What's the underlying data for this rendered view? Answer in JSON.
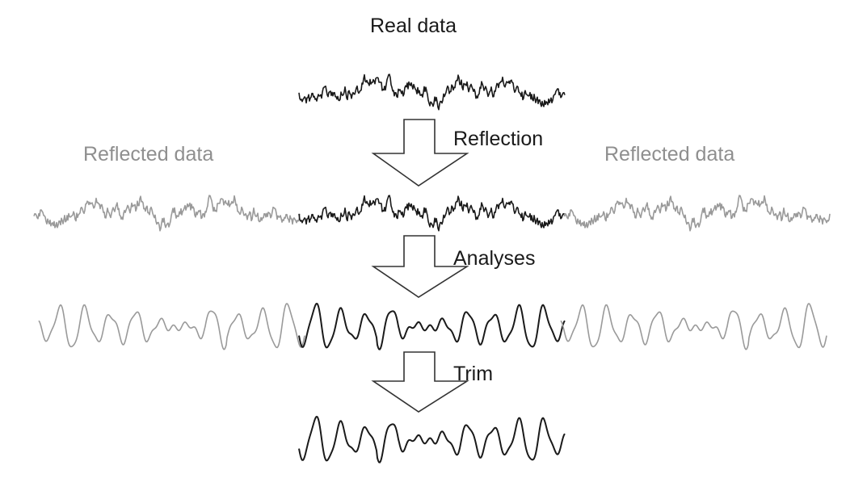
{
  "labels": {
    "real_data": "Real data",
    "reflection": "Reflection",
    "reflected_left": "Reflected data",
    "reflected_right": "Reflected data",
    "analyses": "Analyses",
    "trim": "Trim"
  },
  "colors": {
    "real": "#1a1a1a",
    "reflected": "#9a9a9a",
    "arrow_stroke": "#333333",
    "arrow_fill": "#ffffff"
  },
  "stages": [
    "raw-signal",
    "reflected-signal",
    "analysed-signal",
    "trimmed-signal"
  ]
}
